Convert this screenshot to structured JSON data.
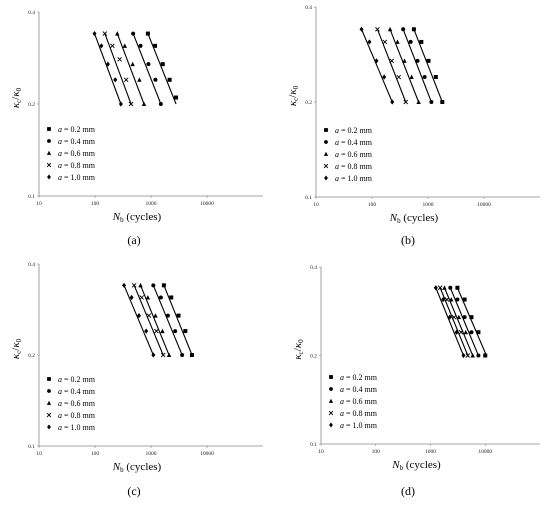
{
  "chart_data": [
    {
      "type": "scatter",
      "panel_label": "(a)",
      "x_scale": "log",
      "y_scale": "log",
      "xlim": [
        10,
        100000
      ],
      "ylim": [
        0.1,
        0.4
      ],
      "x_ticks": [
        "10",
        "100",
        "1000",
        "10000"
      ],
      "y_ticks": [
        "0.1",
        "0.2",
        "0.4"
      ],
      "x_label": {
        "symbol": "N",
        "sub": "b",
        "unit": " (cycles)"
      },
      "y_label": {
        "num": "κ",
        "num_sub": "c",
        "den": "κ",
        "den_sub": "0"
      },
      "legend_position": "lower-left",
      "series": [
        {
          "name": "a = 0.2 mm",
          "marker": "square",
          "x": [
            880,
            1180,
            1620,
            2150,
            2800
          ],
          "y": [
            0.34,
            0.31,
            0.27,
            0.24,
            0.21
          ],
          "fit_x": [
            880,
            2800
          ],
          "fit_y": [
            0.34,
            0.2
          ]
        },
        {
          "name": "a = 0.4 mm",
          "marker": "circle",
          "x": [
            480,
            650,
            900,
            1200,
            1500
          ],
          "y": [
            0.34,
            0.31,
            0.27,
            0.24,
            0.2
          ],
          "fit_x": [
            480,
            1500
          ],
          "fit_y": [
            0.34,
            0.2
          ]
        },
        {
          "name": "a = 0.6 mm",
          "marker": "triangle",
          "x": [
            250,
            340,
            470,
            620,
            750
          ],
          "y": [
            0.34,
            0.31,
            0.27,
            0.24,
            0.2
          ],
          "fit_x": [
            250,
            750
          ],
          "fit_y": [
            0.34,
            0.2
          ]
        },
        {
          "name": "a = 0.8 mm",
          "marker": "x",
          "x": [
            150,
            205,
            275,
            360,
            440
          ],
          "y": [
            0.34,
            0.31,
            0.28,
            0.24,
            0.2
          ],
          "fit_x": [
            150,
            440
          ],
          "fit_y": [
            0.34,
            0.2
          ]
        },
        {
          "name": "a = 1.0 mm",
          "marker": "diamond",
          "x": [
            98,
            130,
            170,
            230,
            290
          ],
          "y": [
            0.34,
            0.31,
            0.27,
            0.24,
            0.2
          ],
          "fit_x": [
            98,
            290
          ],
          "fit_y": [
            0.34,
            0.2
          ]
        }
      ]
    },
    {
      "type": "scatter",
      "panel_label": "(b)",
      "x_scale": "log",
      "y_scale": "log",
      "xlim": [
        10,
        100000
      ],
      "ylim": [
        0.1,
        0.4
      ],
      "x_ticks": [
        "10",
        "100",
        "1000",
        "10000"
      ],
      "y_ticks": [
        "0.1",
        "0.2",
        "0.4"
      ],
      "x_label": {
        "symbol": "N",
        "sub": "b",
        "unit": " (cycles)"
      },
      "y_label": {
        "num": "κ",
        "num_sub": "c",
        "den": "κ",
        "den_sub": "0"
      },
      "legend_position": "lower-left",
      "series": [
        {
          "name": "a = 0.2 mm",
          "marker": "square",
          "x": [
            560,
            760,
            1020,
            1380,
            1800
          ],
          "y": [
            0.34,
            0.31,
            0.27,
            0.24,
            0.2
          ],
          "fit_x": [
            560,
            1800
          ],
          "fit_y": [
            0.34,
            0.2
          ]
        },
        {
          "name": "a = 0.4 mm",
          "marker": "circle",
          "x": [
            360,
            490,
            650,
            870,
            1150
          ],
          "y": [
            0.34,
            0.31,
            0.27,
            0.24,
            0.2
          ],
          "fit_x": [
            360,
            1150
          ],
          "fit_y": [
            0.34,
            0.2
          ]
        },
        {
          "name": "a = 0.6 mm",
          "marker": "triangle",
          "x": [
            210,
            285,
            380,
            510,
            680
          ],
          "y": [
            0.34,
            0.31,
            0.27,
            0.24,
            0.2
          ],
          "fit_x": [
            210,
            680
          ],
          "fit_y": [
            0.34,
            0.2
          ]
        },
        {
          "name": "a = 0.8 mm",
          "marker": "x",
          "x": [
            125,
            170,
            225,
            300,
            400
          ],
          "y": [
            0.34,
            0.31,
            0.27,
            0.24,
            0.2
          ],
          "fit_x": [
            125,
            400
          ],
          "fit_y": [
            0.34,
            0.2
          ]
        },
        {
          "name": "a = 1.0 mm",
          "marker": "diamond",
          "x": [
            65,
            90,
            120,
            165,
            230
          ],
          "y": [
            0.34,
            0.31,
            0.27,
            0.24,
            0.2
          ],
          "fit_x": [
            65,
            230
          ],
          "fit_y": [
            0.34,
            0.2
          ]
        }
      ]
    },
    {
      "type": "scatter",
      "panel_label": "(c)",
      "x_scale": "log",
      "y_scale": "log",
      "xlim": [
        10,
        100000
      ],
      "ylim": [
        0.1,
        0.4
      ],
      "x_ticks": [
        "10",
        "100",
        "1000",
        "10000"
      ],
      "y_ticks": [
        "0.1",
        "0.2",
        "0.4"
      ],
      "x_label": {
        "symbol": "N",
        "sub": "b",
        "unit": " (cycles)"
      },
      "y_label": {
        "num": "κ",
        "num_sub": "c",
        "den": "κ",
        "den_sub": "0"
      },
      "legend_position": "lower-left",
      "series": [
        {
          "name": "a = 0.2 mm",
          "marker": "square",
          "x": [
            1700,
            2300,
            3100,
            4100,
            5400
          ],
          "y": [
            0.34,
            0.31,
            0.27,
            0.24,
            0.2
          ],
          "fit_x": [
            1700,
            5400
          ],
          "fit_y": [
            0.34,
            0.2
          ]
        },
        {
          "name": "a = 0.4 mm",
          "marker": "circle",
          "x": [
            1100,
            1500,
            2000,
            2700,
            3600
          ],
          "y": [
            0.34,
            0.31,
            0.27,
            0.24,
            0.2
          ],
          "fit_x": [
            1100,
            3600
          ],
          "fit_y": [
            0.34,
            0.2
          ]
        },
        {
          "name": "a = 0.6 mm",
          "marker": "triangle",
          "x": [
            650,
            880,
            1200,
            1600,
            2100
          ],
          "y": [
            0.34,
            0.31,
            0.27,
            0.24,
            0.2
          ],
          "fit_x": [
            650,
            2100
          ],
          "fit_y": [
            0.34,
            0.2
          ]
        },
        {
          "name": "a = 0.8 mm",
          "marker": "x",
          "x": [
            500,
            680,
            920,
            1250,
            1650
          ],
          "y": [
            0.34,
            0.31,
            0.27,
            0.24,
            0.2
          ],
          "fit_x": [
            500,
            1650
          ],
          "fit_y": [
            0.34,
            0.2
          ]
        },
        {
          "name": "a = 1.0 mm",
          "marker": "diamond",
          "x": [
            330,
            450,
            610,
            820,
            1100
          ],
          "y": [
            0.34,
            0.31,
            0.27,
            0.24,
            0.2
          ],
          "fit_x": [
            330,
            1100
          ],
          "fit_y": [
            0.34,
            0.2
          ]
        }
      ]
    },
    {
      "type": "scatter",
      "panel_label": "(d)",
      "x_scale": "log",
      "y_scale": "log",
      "xlim": [
        10,
        100000
      ],
      "ylim": [
        0.1,
        0.4
      ],
      "x_ticks": [
        "10",
        "100",
        "1000",
        "10000"
      ],
      "y_ticks": [
        "0.1",
        "0.2",
        "0.4"
      ],
      "x_label": {
        "symbol": "N",
        "sub": "b",
        "unit": " (cycles)"
      },
      "y_label": {
        "num": "κ",
        "num_sub": "c",
        "den": "κ",
        "den_sub": "0"
      },
      "legend_position": "lower-left",
      "series": [
        {
          "name": "a = 0.2 mm",
          "marker": "square",
          "x": [
            3100,
            4200,
            5600,
            7500,
            10000
          ],
          "y": [
            0.34,
            0.31,
            0.27,
            0.24,
            0.2
          ],
          "fit_x": [
            3100,
            10500
          ],
          "fit_y": [
            0.34,
            0.2
          ]
        },
        {
          "name": "a = 0.4 mm",
          "marker": "circle",
          "x": [
            2300,
            3100,
            4200,
            5600,
            7500
          ],
          "y": [
            0.34,
            0.31,
            0.27,
            0.24,
            0.2
          ],
          "fit_x": [
            2300,
            7500
          ],
          "fit_y": [
            0.34,
            0.2
          ]
        },
        {
          "name": "a = 0.6 mm",
          "marker": "triangle",
          "x": [
            1800,
            2400,
            3300,
            4400,
            5900
          ],
          "y": [
            0.34,
            0.31,
            0.27,
            0.24,
            0.2
          ],
          "fit_x": [
            1800,
            5900
          ],
          "fit_y": [
            0.34,
            0.2
          ]
        },
        {
          "name": "a = 0.8 mm",
          "marker": "x",
          "x": [
            1500,
            2000,
            2700,
            3600,
            4800
          ],
          "y": [
            0.34,
            0.31,
            0.27,
            0.24,
            0.2
          ],
          "fit_x": [
            1500,
            4800
          ],
          "fit_y": [
            0.34,
            0.2
          ]
        },
        {
          "name": "a = 1.0 mm",
          "marker": "diamond",
          "x": [
            1250,
            1700,
            2250,
            3000,
            4000
          ],
          "y": [
            0.34,
            0.31,
            0.27,
            0.24,
            0.2
          ],
          "fit_x": [
            1250,
            4000
          ],
          "fit_y": [
            0.34,
            0.2
          ]
        }
      ]
    }
  ]
}
